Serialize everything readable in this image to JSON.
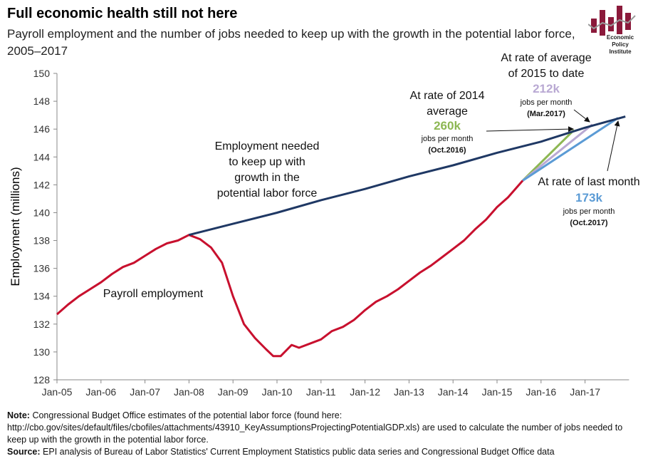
{
  "title": "Full economic health still not here",
  "subtitle": "Payroll employment and the number of jobs needed to keep up with the growth in the potential labor force, 2005–2017",
  "logo": {
    "text": "Economic Policy Institute"
  },
  "notes": {
    "note_label": "Note:",
    "note_text": "Congressional Budget Office estimates of the potential labor force (found here: http://cbo.gov/sites/default/files/cbofiles/attachments/43910_KeyAssumptionsProjectingPotentialGDP.xls) are used to calculate  the number of jobs needed to keep up with the growth in the potential labor force.",
    "source_label": "Source:",
    "source_text": "EPI analysis of Bureau of Labor Statistics' Current Employment Statistics public data series and Congressional Budget Office data"
  },
  "chart_data": {
    "type": "line",
    "ylabel": "Employment (millions)",
    "xlabel": "",
    "ylim": [
      128,
      150
    ],
    "yticks": [
      128,
      130,
      132,
      134,
      136,
      138,
      140,
      142,
      144,
      146,
      148,
      150
    ],
    "xlim": [
      "2005-01",
      "2017-12"
    ],
    "xticks": [
      "Jan-05",
      "Jan-06",
      "Jan-07",
      "Jan-08",
      "Jan-09",
      "Jan-10",
      "Jan-11",
      "Jan-12",
      "Jan-13",
      "Jan-14",
      "Jan-15",
      "Jan-16",
      "Jan-17"
    ],
    "grid": false,
    "series": [
      {
        "name": "Payroll employment",
        "color": "#c8102e",
        "points": [
          [
            "2005-01",
            132.7
          ],
          [
            "2005-04",
            133.4
          ],
          [
            "2005-07",
            134.0
          ],
          [
            "2005-10",
            134.5
          ],
          [
            "2006-01",
            135.0
          ],
          [
            "2006-04",
            135.6
          ],
          [
            "2006-07",
            136.1
          ],
          [
            "2006-10",
            136.4
          ],
          [
            "2007-01",
            136.9
          ],
          [
            "2007-04",
            137.4
          ],
          [
            "2007-07",
            137.8
          ],
          [
            "2007-10",
            138.0
          ],
          [
            "2008-01",
            138.4
          ],
          [
            "2008-04",
            138.1
          ],
          [
            "2008-07",
            137.5
          ],
          [
            "2008-10",
            136.4
          ],
          [
            "2009-01",
            134.0
          ],
          [
            "2009-04",
            132.0
          ],
          [
            "2009-07",
            131.0
          ],
          [
            "2009-10",
            130.2
          ],
          [
            "2009-12",
            129.7
          ],
          [
            "2010-02",
            129.7
          ],
          [
            "2010-05",
            130.5
          ],
          [
            "2010-07",
            130.3
          ],
          [
            "2010-10",
            130.6
          ],
          [
            "2011-01",
            130.9
          ],
          [
            "2011-04",
            131.5
          ],
          [
            "2011-07",
            131.8
          ],
          [
            "2011-10",
            132.3
          ],
          [
            "2012-01",
            133.0
          ],
          [
            "2012-04",
            133.6
          ],
          [
            "2012-07",
            134.0
          ],
          [
            "2012-10",
            134.5
          ],
          [
            "2013-01",
            135.1
          ],
          [
            "2013-04",
            135.7
          ],
          [
            "2013-07",
            136.2
          ],
          [
            "2013-10",
            136.8
          ],
          [
            "2014-01",
            137.4
          ],
          [
            "2014-04",
            138.0
          ],
          [
            "2014-07",
            138.8
          ],
          [
            "2014-10",
            139.5
          ],
          [
            "2015-01",
            140.4
          ],
          [
            "2015-04",
            141.1
          ],
          [
            "2015-08",
            142.3
          ]
        ]
      },
      {
        "name": "Employment needed to keep up with growth in the potential labor force",
        "color": "#1f3864",
        "points": [
          [
            "2008-01",
            138.4
          ],
          [
            "2009-01",
            139.2
          ],
          [
            "2010-01",
            140.0
          ],
          [
            "2011-01",
            140.9
          ],
          [
            "2012-01",
            141.7
          ],
          [
            "2013-01",
            142.6
          ],
          [
            "2014-01",
            143.4
          ],
          [
            "2015-01",
            144.3
          ],
          [
            "2016-01",
            145.1
          ],
          [
            "2017-01",
            146.1
          ],
          [
            "2017-12",
            146.9
          ]
        ]
      },
      {
        "name": "At rate of 2014 average",
        "color": "#8db753",
        "points": [
          [
            "2015-08",
            142.3
          ],
          [
            "2016-10",
            145.94
          ]
        ]
      },
      {
        "name": "At rate of average of 2015 to date",
        "color": "#b9a9d3",
        "points": [
          [
            "2015-08",
            142.3
          ],
          [
            "2017-03",
            146.33
          ]
        ]
      },
      {
        "name": "At rate of last month",
        "color": "#5b9bd5",
        "points": [
          [
            "2015-08",
            142.3
          ],
          [
            "2017-10",
            146.8
          ]
        ]
      }
    ],
    "annotations": {
      "needed": "Employment needed to keep up with growth in the potential labor force",
      "payroll": "Payroll employment",
      "a2014": {
        "line1": "At rate of 2014",
        "line2": "average",
        "value": "260k",
        "unit": "jobs per month",
        "date": "(Oct.2016)"
      },
      "a2015": {
        "line1": "At rate of average",
        "line2": "of 2015 to date",
        "value": "212k",
        "unit": "jobs per month",
        "date": "(Mar.2017)"
      },
      "alast": {
        "line1": "At rate of last month",
        "value": "173k",
        "unit": "jobs per month",
        "date": "(Oct.2017)"
      }
    }
  }
}
